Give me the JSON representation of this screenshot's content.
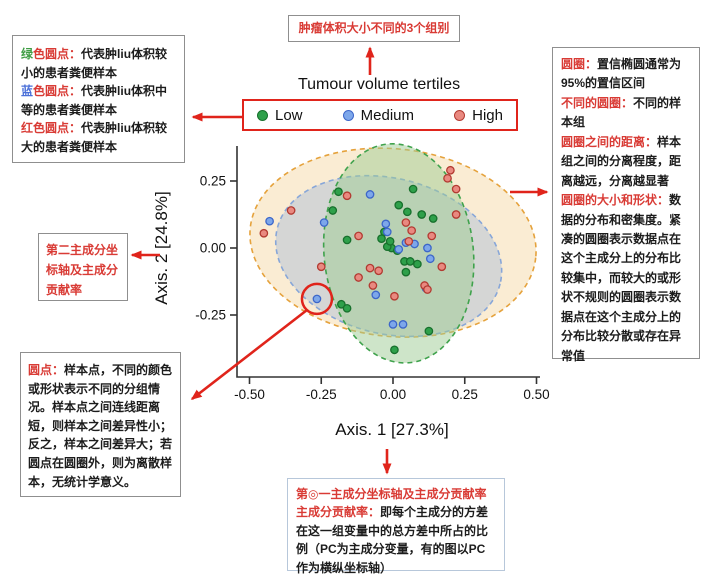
{
  "annotations": {
    "top_box": {
      "text": "肿瘤体积大小不同的3个组别"
    },
    "top_left_box": {
      "lines": [
        [
          {
            "t": "绿",
            "s": "g"
          },
          {
            "t": "色圆点：",
            "s": "r"
          },
          {
            "t": "代表肿liu体积较小的患者粪便样本",
            "s": "k"
          }
        ],
        [
          {
            "t": "蓝",
            "s": "b"
          },
          {
            "t": "色圆点：",
            "s": "r"
          },
          {
            "t": "代表肿liu体积中等的患者粪便样本",
            "s": "k"
          }
        ],
        [
          {
            "t": "红",
            "s": "r"
          },
          {
            "t": "色圆点：",
            "s": "r"
          },
          {
            "t": "代表肿liu体积较大的患者粪便样本",
            "s": "k"
          }
        ]
      ]
    },
    "left_mid_box": {
      "text": "第二主成分坐标轴及主成分贡献率"
    },
    "right_box": {
      "lines": [
        [
          {
            "t": "圆圈：",
            "s": "r"
          },
          {
            "t": "置信椭圆通常为95%的置信区间",
            "s": "k"
          }
        ],
        [
          {
            "t": "不同的圆圈：",
            "s": "r"
          },
          {
            "t": "不同的样本组",
            "s": "k"
          }
        ],
        [
          {
            "t": "圆圈之间的距离：",
            "s": "r"
          },
          {
            "t": "样本组之间的分离程度，距离越远，分离越显著",
            "s": "k"
          }
        ],
        [
          {
            "t": "圆圈的大小和形状：",
            "s": "r"
          },
          {
            "t": "数据的分布和密集度。紧凑的圆圈表示数据点在这个主成分上的分布比较集中，而较大的或形状不规则的圆圈表示数据点在这个主成分上的分布比较分散或存在异常值",
            "s": "k"
          }
        ]
      ]
    },
    "bottom_left_box": {
      "lines": [
        [
          {
            "t": "圆点：",
            "s": "r"
          },
          {
            "t": "样本点，不同的颜色或形状表示不同的分组情况。样本点之间连线距离短，则样本之间差异性小；反之，样本之间差异大；若圆点在圆圈外，则为离散样本，无统计学意义。",
            "s": "k"
          }
        ]
      ]
    },
    "bottom_box": {
      "lines": [
        [
          {
            "t": "第◎一主成分坐标轴及主成分贡献率",
            "s": "r"
          }
        ],
        [
          {
            "t": "主成分贡献率：",
            "s": "r"
          },
          {
            "t": "即每个主成分的方差在这一组变量中的总方差中所占的比例（PC为主成分变量，有的图以PC作为横纵坐标轴）",
            "s": "k"
          }
        ]
      ]
    }
  },
  "colors": {
    "annotation_red": "#d93b35",
    "arrow_red": "#e0241b",
    "legend_border_red": "#e0241b",
    "box_border_gray": "#8f8f8f",
    "bottom_box_border": "#b7c7da"
  },
  "chart_data": {
    "type": "scatter",
    "title": "Tumour volume tertiles",
    "xlabel": "Axis. 1 [27.3%]",
    "ylabel": "Axis. 2 [24.8%]",
    "xlim": [
      -0.55,
      0.52
    ],
    "ylim": [
      -0.48,
      0.4
    ],
    "grid": false,
    "legend_position": "top",
    "x_ticks": [
      -0.5,
      -0.25,
      0,
      0.25,
      0.5
    ],
    "x_tick_labels": [
      "-0.50",
      "-0.25",
      "0.00",
      "0.25",
      "0.50"
    ],
    "y_ticks": [
      0.25,
      0,
      -0.25
    ],
    "y_tick_labels": [
      "0.25",
      "0.00",
      "-0.25"
    ],
    "series": [
      {
        "name": "Low",
        "color": "#2ea04a",
        "edge": "#17702c",
        "points": [
          [
            -0.19,
            0.21
          ],
          [
            -0.21,
            0.14
          ],
          [
            0.07,
            0.22
          ],
          [
            0.02,
            0.16
          ],
          [
            0.05,
            0.135
          ],
          [
            0.1,
            0.125
          ],
          [
            -0.03,
            0.06
          ],
          [
            -0.16,
            0.03
          ],
          [
            -0.04,
            0.035
          ],
          [
            -0.005,
            0.0
          ],
          [
            -0.02,
            0.005
          ],
          [
            0.015,
            -0.01
          ],
          [
            0.04,
            -0.05
          ],
          [
            0.06,
            -0.05
          ],
          [
            0.085,
            -0.06
          ],
          [
            0.045,
            -0.09
          ],
          [
            0.14,
            0.11
          ],
          [
            -0.01,
            0.025
          ],
          [
            -0.18,
            -0.21
          ],
          [
            -0.16,
            -0.225
          ],
          [
            0.125,
            -0.31
          ],
          [
            0.005,
            -0.38
          ]
        ]
      },
      {
        "name": "Medium",
        "color": "#7da7ea",
        "edge": "#3c66c9",
        "points": [
          [
            -0.43,
            0.1
          ],
          [
            -0.24,
            0.095
          ],
          [
            -0.08,
            0.2
          ],
          [
            -0.025,
            0.09
          ],
          [
            -0.02,
            0.06
          ],
          [
            0.045,
            0.02
          ],
          [
            0.02,
            -0.005
          ],
          [
            0.075,
            0.015
          ],
          [
            0.12,
            0.0
          ],
          [
            0.13,
            -0.04
          ],
          [
            0.115,
            -0.15
          ],
          [
            -0.06,
            -0.175
          ],
          [
            0.0,
            -0.285
          ],
          [
            0.035,
            -0.285
          ],
          [
            -0.265,
            -0.19
          ]
        ]
      },
      {
        "name": "High",
        "color": "#e98980",
        "edge": "#b23a31",
        "points": [
          [
            0.2,
            0.29
          ],
          [
            0.19,
            0.26
          ],
          [
            0.22,
            0.22
          ],
          [
            0.22,
            0.125
          ],
          [
            -0.16,
            0.195
          ],
          [
            -0.355,
            0.14
          ],
          [
            -0.45,
            0.055
          ],
          [
            -0.12,
            0.045
          ],
          [
            0.045,
            0.095
          ],
          [
            0.065,
            0.065
          ],
          [
            0.055,
            0.025
          ],
          [
            0.135,
            0.045
          ],
          [
            0.17,
            -0.07
          ],
          [
            -0.25,
            -0.07
          ],
          [
            -0.08,
            -0.075
          ],
          [
            -0.05,
            -0.085
          ],
          [
            -0.12,
            -0.11
          ],
          [
            -0.07,
            -0.14
          ],
          [
            0.005,
            -0.18
          ],
          [
            0.11,
            -0.14
          ],
          [
            0.12,
            -0.155
          ]
        ]
      }
    ],
    "ellipses": [
      {
        "group": "High",
        "cx": 0.0,
        "cy": 0.02,
        "rx": 0.5,
        "ry": 0.35,
        "rotation": 6,
        "fill": "#f6d9a8",
        "fill_opacity": 0.5,
        "stroke": "#e5a23c"
      },
      {
        "group": "Medium",
        "cx": -0.015,
        "cy": -0.03,
        "rx": 0.4,
        "ry": 0.29,
        "rotation": 14,
        "fill": "#a9bcd8",
        "fill_opacity": 0.45,
        "stroke": "#87a6d8"
      },
      {
        "group": "Low",
        "cx": 0.02,
        "cy": -0.02,
        "rx": 0.26,
        "ry": 0.41,
        "rotation": -6,
        "fill": "#9ecb94",
        "fill_opacity": 0.5,
        "stroke": "#3fa24c"
      }
    ],
    "highlight_circle": {
      "x": -0.265,
      "y": -0.19,
      "note": "outlier-sample-marker"
    }
  }
}
